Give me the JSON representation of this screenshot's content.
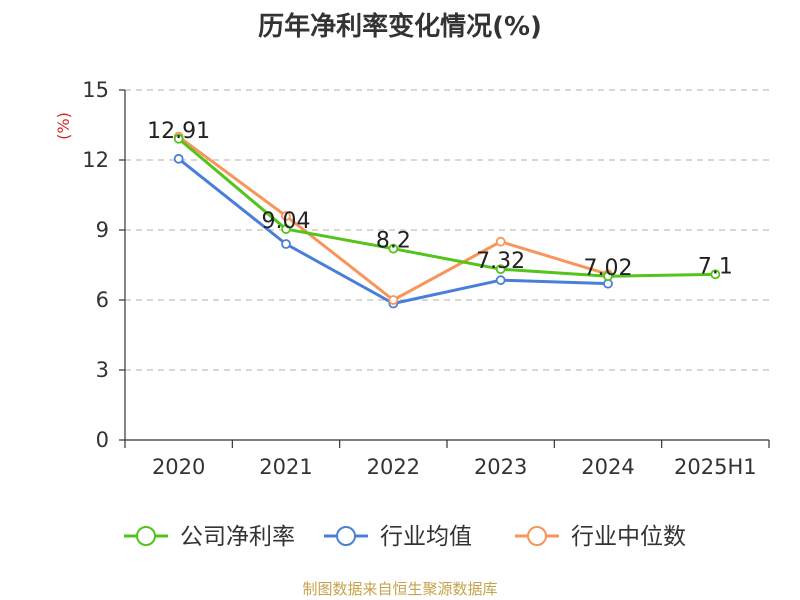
{
  "chart_data": {
    "type": "line",
    "title": "历年净利率变化情况(%)",
    "ylabel": "(%)",
    "xlabel": "",
    "categories": [
      "2020",
      "2021",
      "2022",
      "2023",
      "2024",
      "2025H1"
    ],
    "ylim": [
      0,
      15
    ],
    "yticks": [
      0,
      3,
      6,
      9,
      12,
      15
    ],
    "grid": true,
    "legend_position": "bottom",
    "series": [
      {
        "name": "公司净利率",
        "color": "#52c41a",
        "values": [
          12.91,
          9.04,
          8.2,
          7.32,
          7.02,
          7.1
        ],
        "labels": [
          "12.91",
          "9.04",
          "8.2",
          "7.32",
          "7.02",
          "7.1"
        ]
      },
      {
        "name": "行业均值",
        "color": "#4a7fd9",
        "values": [
          12.05,
          8.4,
          5.85,
          6.85,
          6.7,
          null
        ]
      },
      {
        "name": "行业中位数",
        "color": "#f7955b",
        "values": [
          13.0,
          9.6,
          6.0,
          8.5,
          7.1,
          null
        ]
      }
    ]
  },
  "source": "制图数据来自恒生聚源数据库"
}
